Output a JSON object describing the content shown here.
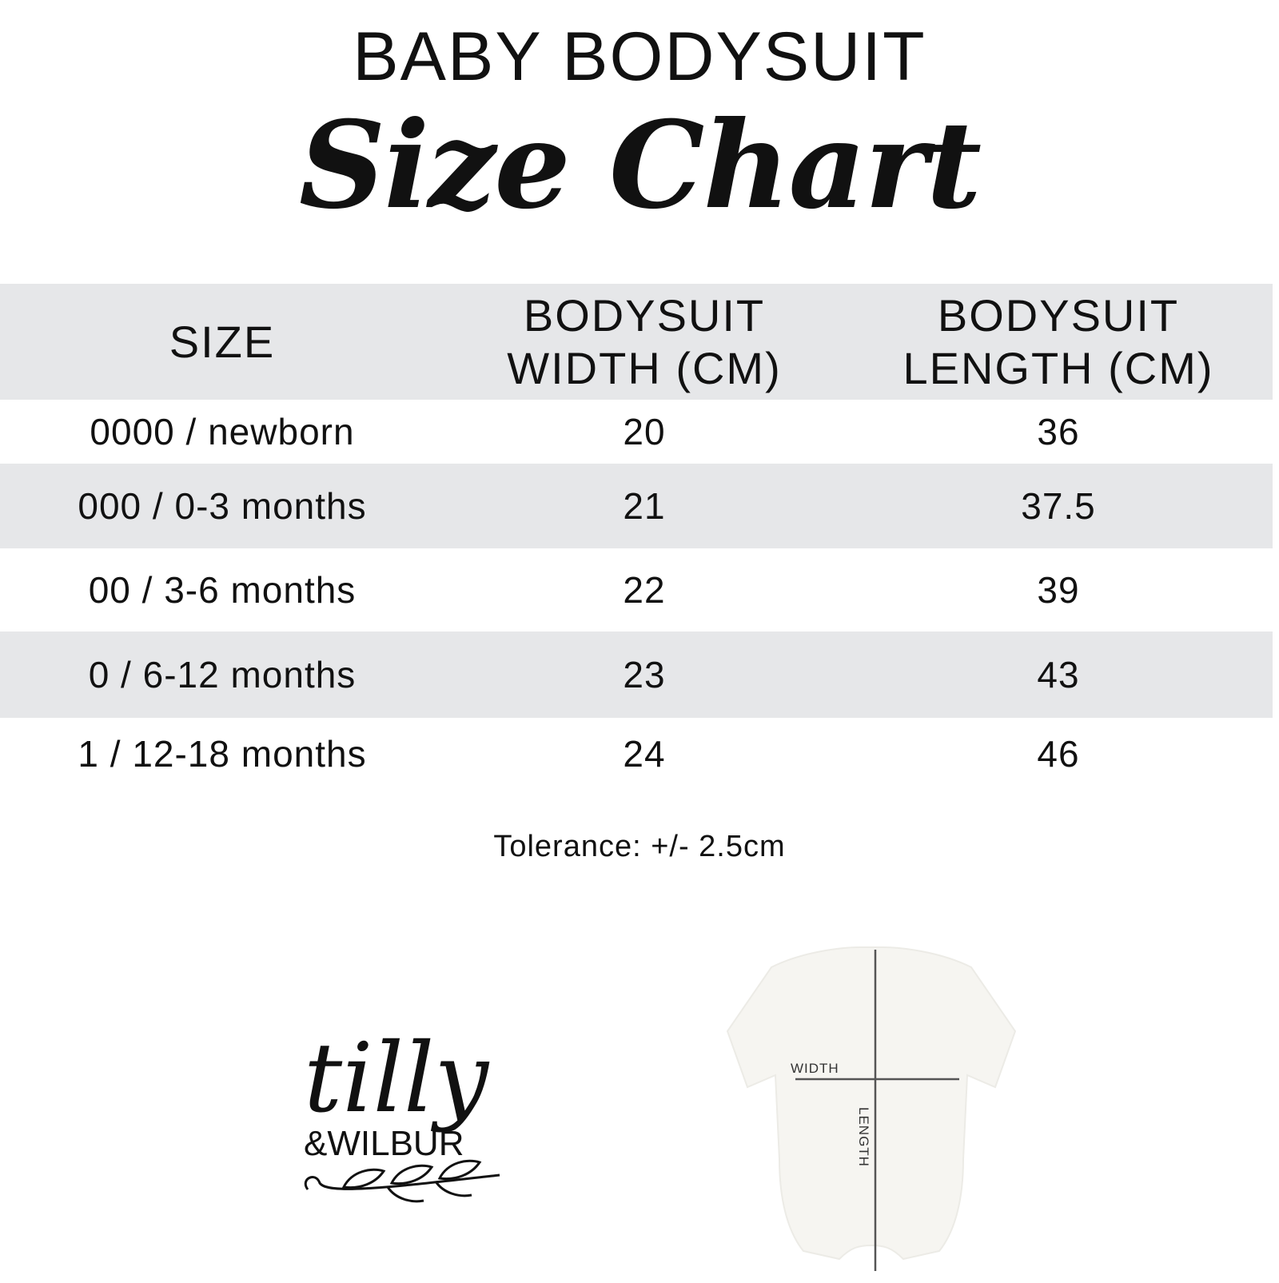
{
  "header": {
    "title": "BABY BODYSUIT",
    "subtitle": "Size Chart"
  },
  "table": {
    "columns": [
      {
        "line1": "SIZE",
        "line2": ""
      },
      {
        "line1": "BODYSUIT",
        "line2": "WIDTH (CM)"
      },
      {
        "line1": "BODYSUIT",
        "line2": "LENGTH (CM)"
      }
    ],
    "rows": [
      {
        "size": "0000 / newborn",
        "width": "20",
        "length": "36"
      },
      {
        "size": "000 / 0-3 months",
        "width": "21",
        "length": "37.5"
      },
      {
        "size": "00 / 3-6 months",
        "width": "22",
        "length": "39"
      },
      {
        "size": "0 / 6-12 months",
        "width": "23",
        "length": "43"
      },
      {
        "size": "1 / 12-18 months",
        "width": "24",
        "length": "46"
      }
    ],
    "row_shade_color": "#e6e7e9"
  },
  "tolerance": "Tolerance: +/- 2.5cm",
  "logo": {
    "line1": "tilly",
    "line2": "&WILBUR"
  },
  "diagram": {
    "width_label": "WIDTH",
    "length_label": "LENGTH"
  }
}
